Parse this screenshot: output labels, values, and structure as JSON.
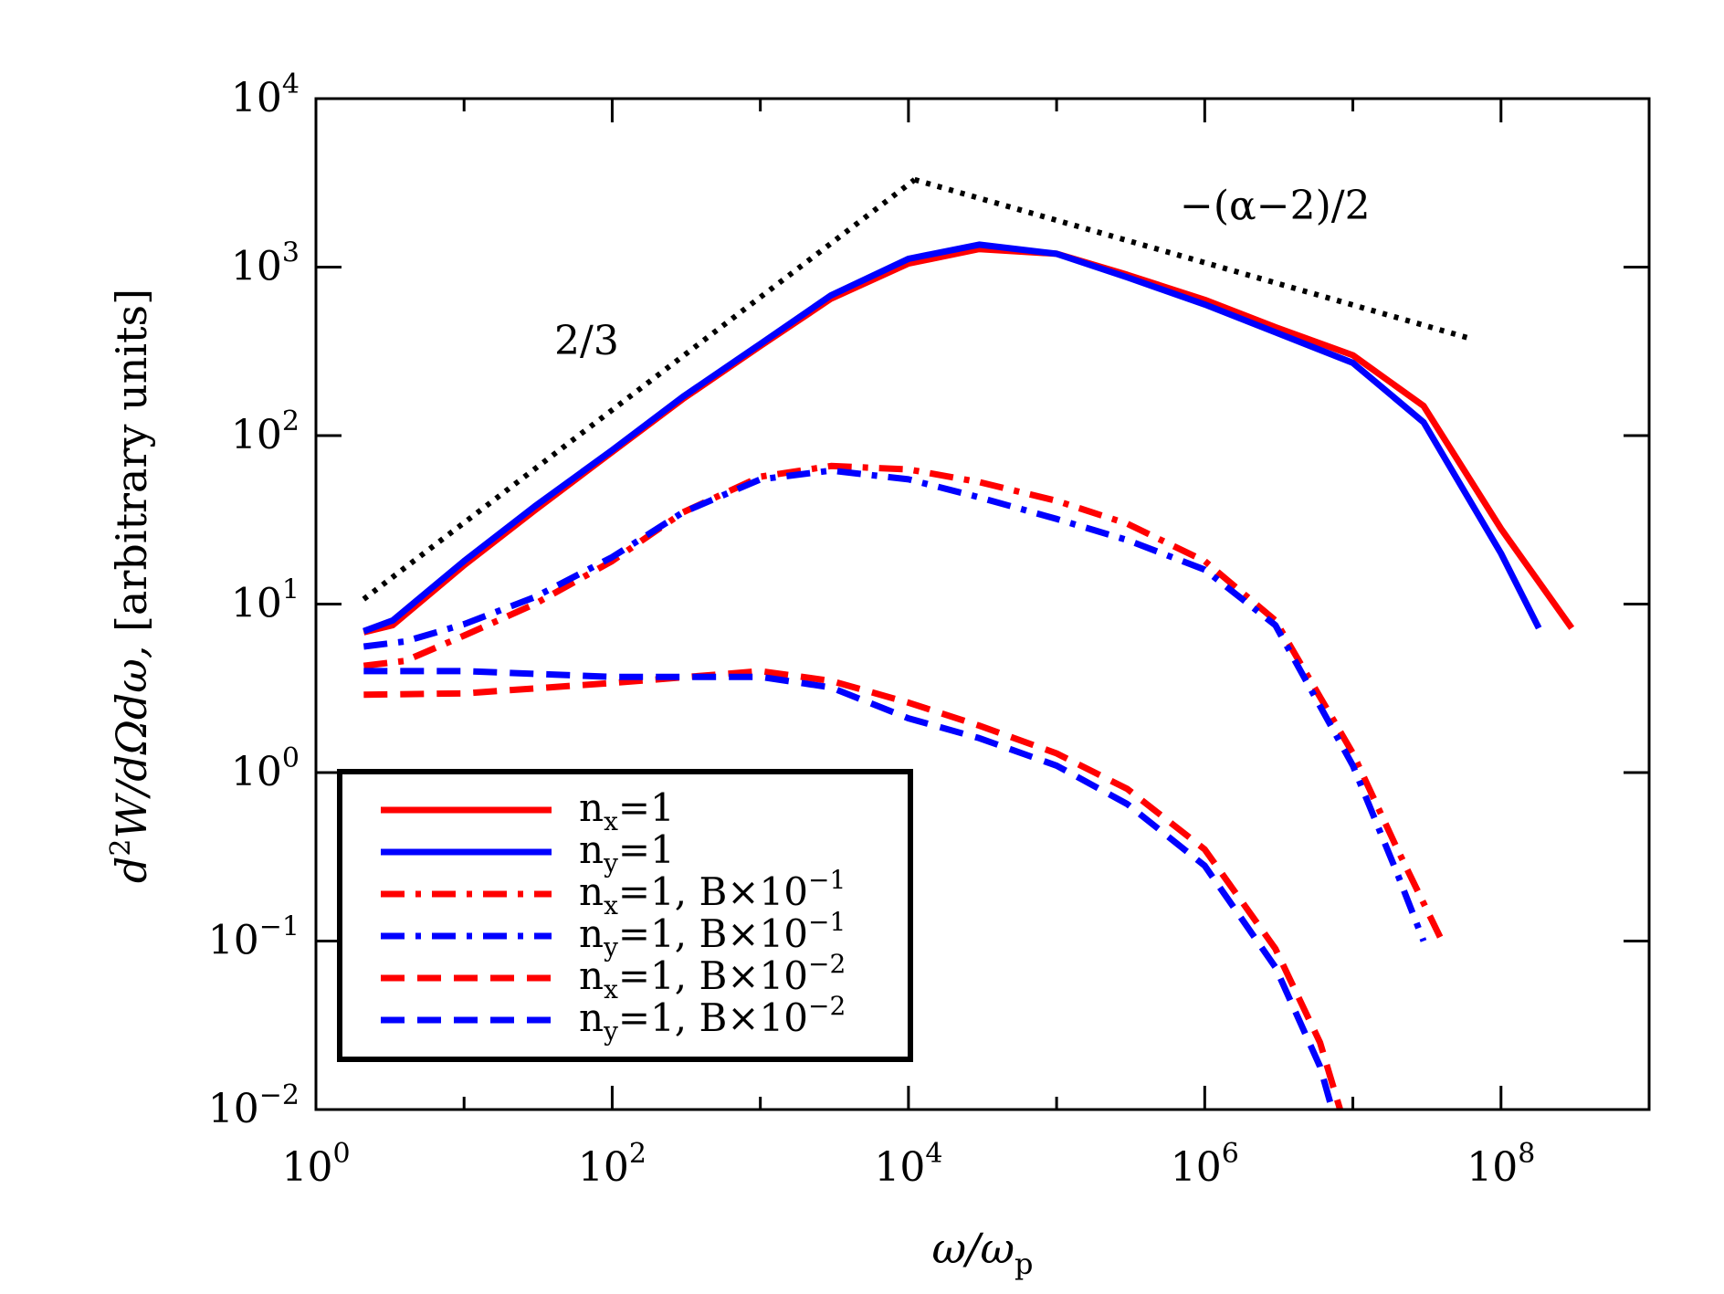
{
  "chart_data": {
    "type": "line",
    "title": "",
    "xlabel": "ω/ω_p",
    "ylabel": "d²W/dΩdω, [arbitrary units]",
    "xscale": "log",
    "yscale": "log",
    "xlim": [
      1,
      1000000000.0
    ],
    "ylim": [
      0.01,
      10000
    ],
    "grid": false,
    "legend_position": "bottom-left",
    "x_ticks": [
      {
        "value": 1,
        "base": "10",
        "exp": "0"
      },
      {
        "value": 100,
        "base": "10",
        "exp": "2"
      },
      {
        "value": 10000,
        "base": "10",
        "exp": "4"
      },
      {
        "value": 1000000,
        "base": "10",
        "exp": "6"
      },
      {
        "value": 100000000,
        "base": "10",
        "exp": "8"
      }
    ],
    "y_ticks": [
      {
        "value": 0.01,
        "base": "10",
        "exp": "−2"
      },
      {
        "value": 0.1,
        "base": "10",
        "exp": "−1"
      },
      {
        "value": 1,
        "base": "10",
        "exp": "0"
      },
      {
        "value": 10,
        "base": "10",
        "exp": "1"
      },
      {
        "value": 100,
        "base": "10",
        "exp": "2"
      },
      {
        "value": 1000,
        "base": "10",
        "exp": "3"
      },
      {
        "value": 10000,
        "base": "10",
        "exp": "4"
      }
    ],
    "annotations": [
      {
        "text": "2/3"
      },
      {
        "text": "−(α−2)/2"
      }
    ],
    "reference_lines": [
      {
        "name": "slope 2/3",
        "x": [
          2.1,
          11000
        ],
        "y": [
          10.7,
          3300
        ]
      },
      {
        "name": "slope −(α−2)/2",
        "x": [
          11000,
          60000000
        ],
        "y": [
          3300,
          380
        ]
      }
    ],
    "series": [
      {
        "name": "n_x=1",
        "label_main": "n",
        "label_sub": "x",
        "label_tail": "=1",
        "label_exp": "",
        "color": "#ff0000",
        "dash": "solid",
        "x": [
          2.1,
          3.3,
          10,
          30,
          100,
          300,
          1000,
          3000,
          10000,
          30000,
          100000,
          300000,
          1000000,
          3000000,
          10000000,
          30000000,
          100000000,
          300000000
        ],
        "y": [
          6.8,
          7.5,
          17,
          36,
          80,
          165,
          340,
          650,
          1050,
          1280,
          1200,
          900,
          640,
          440,
          300,
          150,
          28,
          7.2
        ]
      },
      {
        "name": "n_y=1",
        "label_main": "n",
        "label_sub": "y",
        "label_tail": "=1",
        "label_exp": "",
        "color": "#0000ff",
        "dash": "solid",
        "x": [
          2.1,
          3.3,
          10,
          30,
          100,
          300,
          1000,
          3000,
          10000,
          30000,
          100000,
          300000,
          1000000,
          3000000,
          10000000,
          30000000,
          100000000,
          180000000
        ],
        "y": [
          6.9,
          8.0,
          18,
          38,
          82,
          170,
          350,
          680,
          1120,
          1360,
          1200,
          870,
          600,
          410,
          270,
          120,
          20,
          7.2
        ]
      },
      {
        "name": "n_x=1, B×10^-1",
        "label_main": "n",
        "label_sub": "x",
        "label_tail": "=1,  B×10",
        "label_exp": "−1",
        "color": "#ff0000",
        "dash": "dashdot",
        "x": [
          2.1,
          4,
          10,
          30,
          100,
          300,
          1000,
          3000,
          10000,
          30000,
          100000,
          300000,
          1000000,
          3000000,
          10000000,
          20000000,
          40000000
        ],
        "y": [
          4.3,
          4.6,
          6.5,
          10,
          18,
          35,
          57,
          66,
          63,
          53,
          41,
          30,
          18,
          8,
          1.3,
          0.35,
          0.1
        ]
      },
      {
        "name": "n_y=1, B×10^-1",
        "label_main": "n",
        "label_sub": "y",
        "label_tail": "=1,  B×10",
        "label_exp": "−1",
        "color": "#0000ff",
        "dash": "dashdot",
        "x": [
          2.1,
          4,
          10,
          30,
          100,
          300,
          1000,
          3000,
          10000,
          30000,
          100000,
          300000,
          1000000,
          3000000,
          10000000,
          20000000,
          30000000
        ],
        "y": [
          5.6,
          6.0,
          7.6,
          11,
          19,
          35,
          55,
          62,
          55,
          43,
          32,
          24,
          16,
          7.5,
          1.1,
          0.25,
          0.1
        ]
      },
      {
        "name": "n_x=1, B×10^-2",
        "label_main": "n",
        "label_sub": "x",
        "label_tail": "=1,  B×10",
        "label_exp": "−2",
        "color": "#ff0000",
        "dash": "dashed",
        "x": [
          2.1,
          10,
          100,
          1000,
          3000,
          10000,
          30000,
          100000,
          300000,
          1000000,
          3000000,
          6000000,
          8500000
        ],
        "y": [
          2.9,
          2.95,
          3.4,
          4.0,
          3.5,
          2.6,
          1.9,
          1.3,
          0.8,
          0.35,
          0.09,
          0.025,
          0.009
        ]
      },
      {
        "name": "n_y=1, B×10^-2",
        "label_main": "n",
        "label_sub": "y",
        "label_tail": "=1,  B×10",
        "label_exp": "−2",
        "color": "#0000ff",
        "dash": "dashed",
        "x": [
          2.1,
          10,
          100,
          1000,
          3000,
          10000,
          30000,
          100000,
          300000,
          1000000,
          3000000,
          6000000,
          7500000
        ],
        "y": [
          4.0,
          4.0,
          3.7,
          3.7,
          3.2,
          2.1,
          1.6,
          1.1,
          0.65,
          0.28,
          0.07,
          0.018,
          0.009
        ]
      }
    ]
  }
}
